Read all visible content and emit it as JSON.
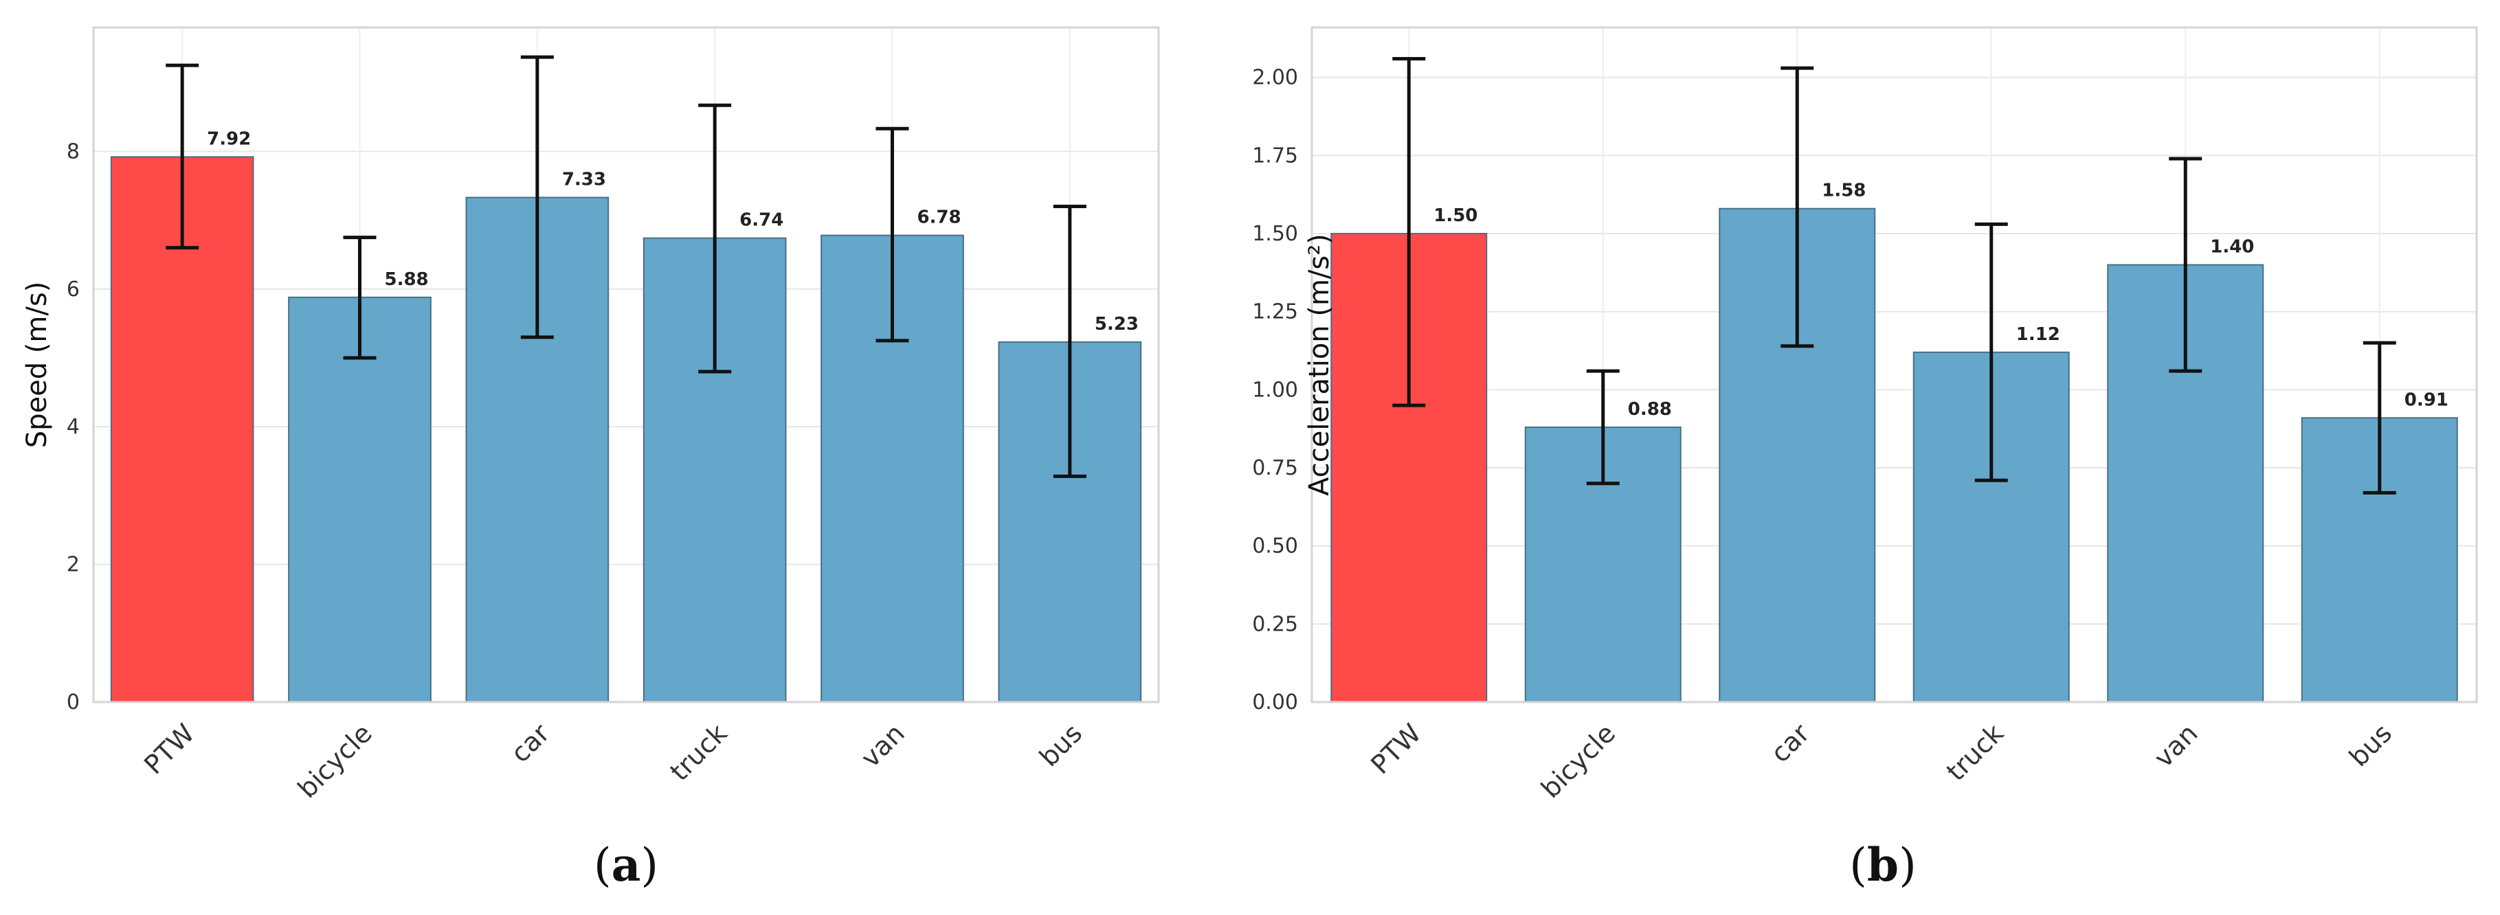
{
  "chart_data": [
    {
      "type": "bar",
      "categories": [
        "PTW",
        "bicycle",
        "car",
        "truck",
        "van",
        "bus"
      ],
      "values": [
        7.92,
        5.88,
        7.33,
        6.74,
        6.78,
        5.23
      ],
      "value_labels": [
        "7.92",
        "5.88",
        "7.33",
        "6.74",
        "6.78",
        "5.23"
      ],
      "error_low": [
        6.6,
        5.0,
        5.3,
        4.8,
        5.25,
        3.28
      ],
      "error_high": [
        9.25,
        6.75,
        9.37,
        8.67,
        8.33,
        7.2
      ],
      "bar_colors": [
        "#ff4a4a",
        "#64a7cb",
        "#64a7cb",
        "#64a7cb",
        "#64a7cb",
        "#64a7cb"
      ],
      "ylabel": "Speed (m/s)",
      "ylim": [
        0,
        9.8
      ],
      "yticks": [
        0,
        2,
        4,
        6,
        8
      ],
      "ytick_labels": [
        "0",
        "2",
        "4",
        "6",
        "8"
      ],
      "grid": true,
      "caption_letter": "a"
    },
    {
      "type": "bar",
      "categories": [
        "PTW",
        "bicycle",
        "car",
        "truck",
        "van",
        "bus"
      ],
      "values": [
        1.5,
        0.88,
        1.58,
        1.12,
        1.4,
        0.91
      ],
      "value_labels": [
        "1.50",
        "0.88",
        "1.58",
        "1.12",
        "1.40",
        "0.91"
      ],
      "error_low": [
        0.95,
        0.7,
        1.14,
        0.71,
        1.06,
        0.67
      ],
      "error_high": [
        2.06,
        1.06,
        2.03,
        1.53,
        1.74,
        1.15
      ],
      "bar_colors": [
        "#ff4a4a",
        "#64a7cb",
        "#64a7cb",
        "#64a7cb",
        "#64a7cb",
        "#64a7cb"
      ],
      "ylabel": "Acceleration (m/s²)",
      "ylim": [
        0,
        2.16
      ],
      "yticks": [
        0,
        0.25,
        0.5,
        0.75,
        1.0,
        1.25,
        1.5,
        1.75,
        2.0
      ],
      "ytick_labels": [
        "0.00",
        "0.25",
        "0.50",
        "0.75",
        "1.00",
        "1.25",
        "1.50",
        "1.75",
        "2.00"
      ],
      "grid": true,
      "caption_letter": "b"
    }
  ]
}
